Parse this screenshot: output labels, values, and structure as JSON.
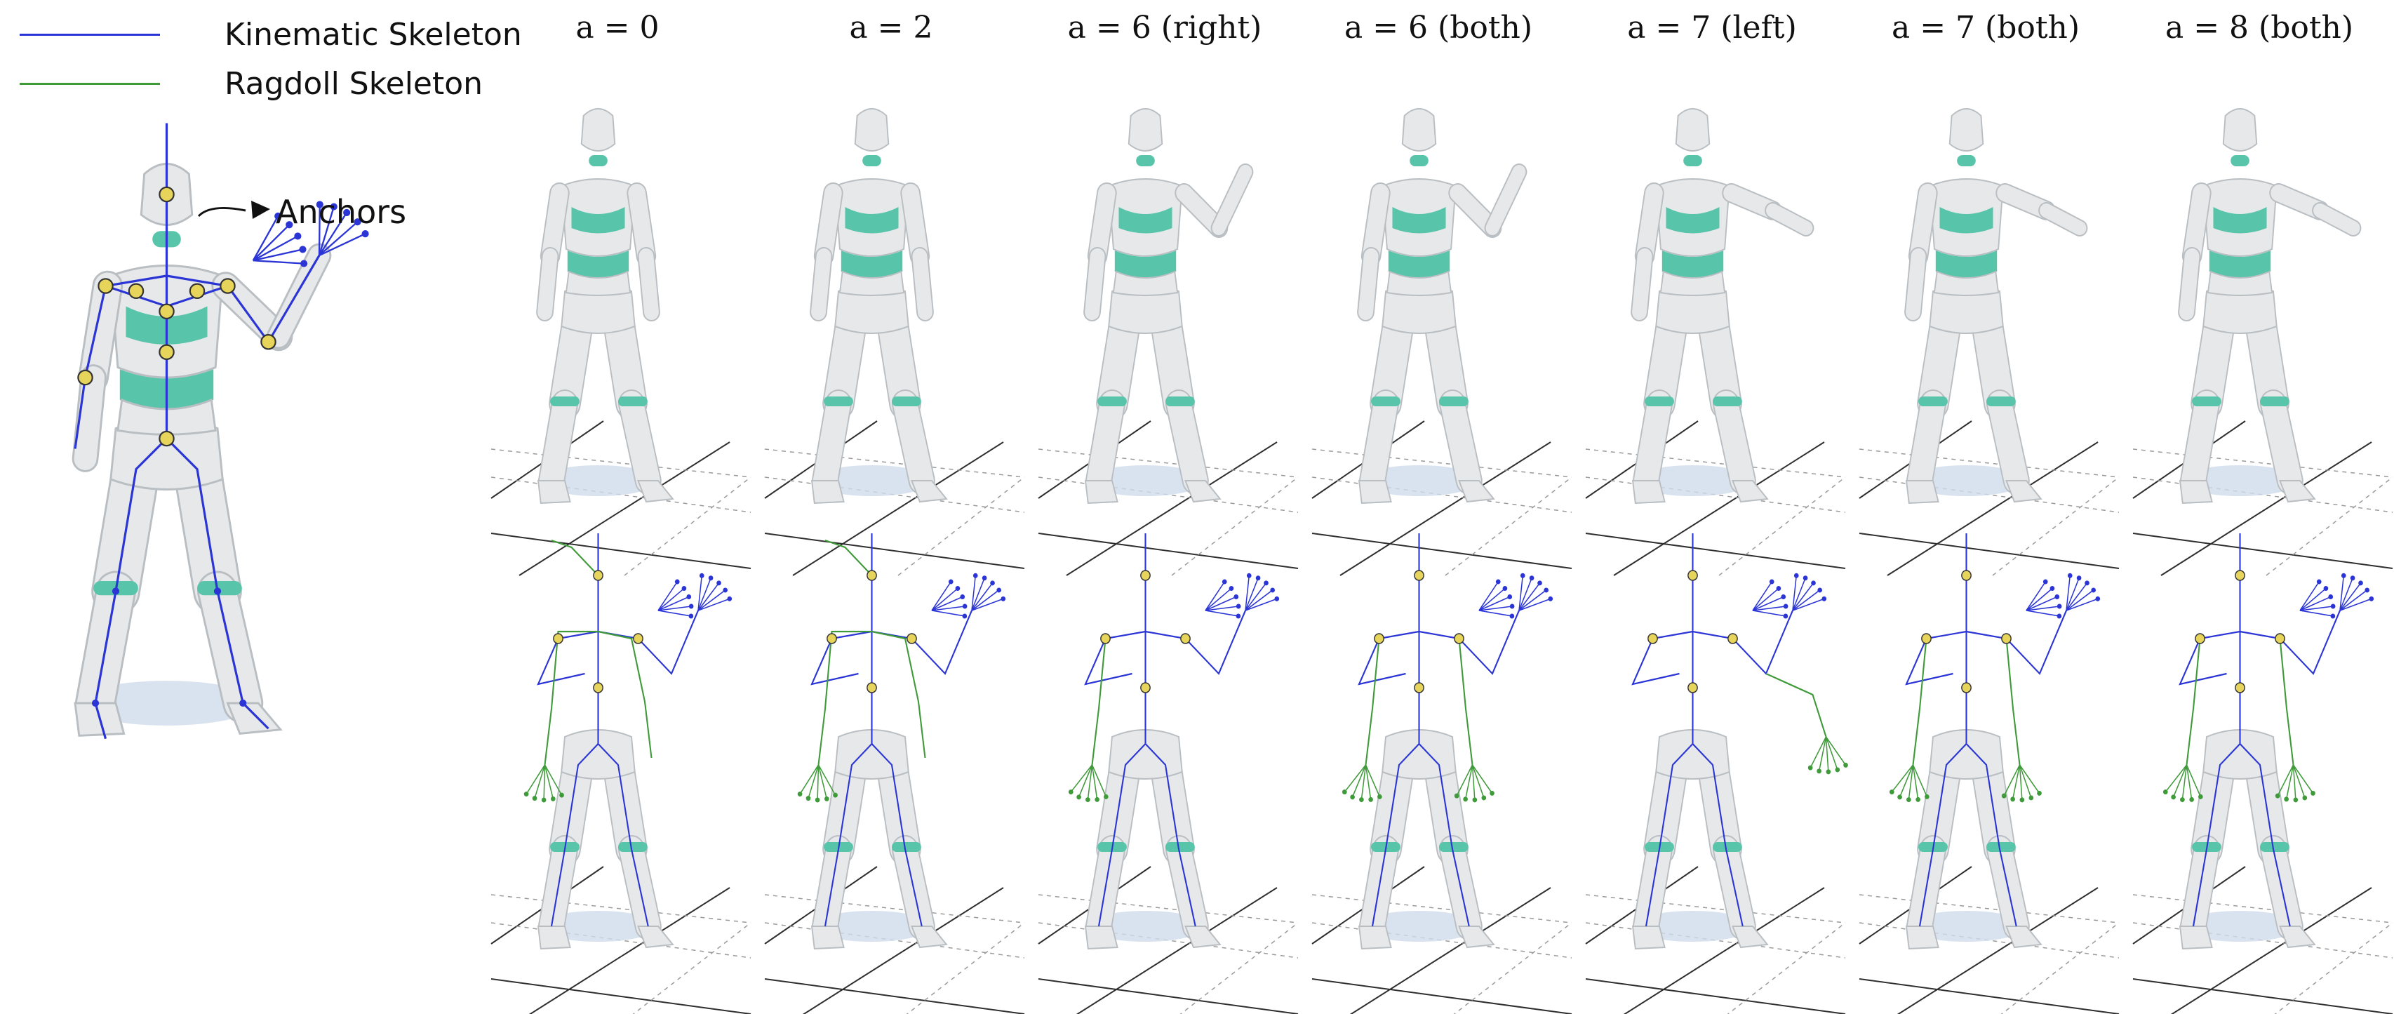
{
  "legend": {
    "kinematic": {
      "label": "Kinematic Skeleton",
      "color": "#2b35d6"
    },
    "ragdoll": {
      "label": "Ragdoll Skeleton",
      "color": "#3f9a3a"
    }
  },
  "annotation": {
    "anchors_label": "Anchors"
  },
  "columns": [
    {
      "label": "a = 0",
      "mode": "none"
    },
    {
      "label": "a = 2",
      "mode": "none"
    },
    {
      "label": "a = 6 (right)",
      "mode": "right"
    },
    {
      "label": "a = 6 (both)",
      "mode": "both"
    },
    {
      "label": "a = 7 (left)",
      "mode": "left"
    },
    {
      "label": "a = 7 (both)",
      "mode": "both"
    },
    {
      "label": "a = 8 (both)",
      "mode": "both"
    }
  ],
  "colors": {
    "body": "#e6e8ea",
    "body_stroke": "#b9bec2",
    "teal": "#58c4aa",
    "shadow": "#cfdcec",
    "grid": "#2e2e2e",
    "anchor": "#e7d45a"
  }
}
